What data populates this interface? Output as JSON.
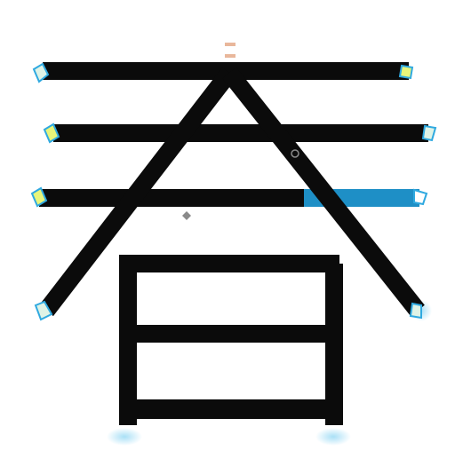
{
  "colors": {
    "stroke": "#0b0b0b",
    "accent": "#1e8fc6",
    "label": "#7fb3d5",
    "marker": "#2fa9e0",
    "marker_fill": "#dff3e6",
    "note_mark": "#e9b79b",
    "background": "#ffffff"
  },
  "glyph": {
    "name": "large-ideogram-drawing"
  },
  "icons": {
    "bullet_left": "diamond-bullet-icon",
    "bullet_right": "circle-bullet-icon",
    "stroke_end": "stroke-end-marker-icon"
  },
  "labels": {
    "top_center": "",
    "top_left": "",
    "top_right": "",
    "row2_left": "",
    "row2_right_a": "",
    "row2_right_b": "",
    "row3_right": "",
    "row3_left": "",
    "row3_right_b": "",
    "middle_center": "",
    "right_lower": "",
    "bottom_middle": "",
    "bottom": ""
  }
}
